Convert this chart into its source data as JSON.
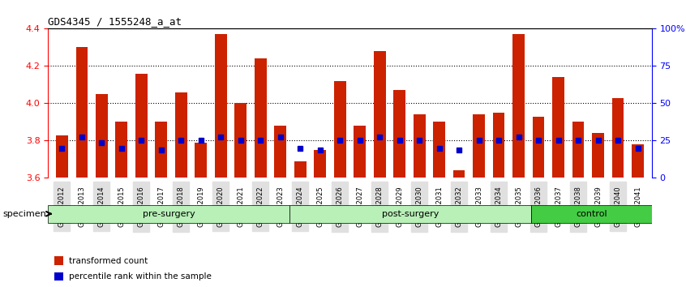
{
  "title": "GDS4345 / 1555248_a_at",
  "samples": [
    "GSM842012",
    "GSM842013",
    "GSM842014",
    "GSM842015",
    "GSM842016",
    "GSM842017",
    "GSM842018",
    "GSM842019",
    "GSM842020",
    "GSM842021",
    "GSM842022",
    "GSM842023",
    "GSM842024",
    "GSM842025",
    "GSM842026",
    "GSM842027",
    "GSM842028",
    "GSM842029",
    "GSM842030",
    "GSM842031",
    "GSM842032",
    "GSM842033",
    "GSM842034",
    "GSM842035",
    "GSM842036",
    "GSM842037",
    "GSM842038",
    "GSM842039",
    "GSM842040",
    "GSM842041"
  ],
  "bar_values": [
    3.83,
    4.3,
    4.05,
    3.9,
    4.16,
    3.9,
    4.06,
    3.79,
    4.37,
    4.0,
    4.24,
    3.88,
    3.69,
    3.75,
    4.12,
    3.88,
    4.28,
    4.07,
    3.94,
    3.9,
    3.64,
    3.94,
    3.95,
    4.37,
    3.93,
    4.14,
    3.9,
    3.84,
    4.03,
    3.78
  ],
  "blue_dot_values": [
    3.76,
    3.82,
    3.79,
    3.76,
    3.8,
    3.75,
    3.8,
    3.8,
    3.82,
    3.8,
    3.8,
    3.82,
    3.76,
    3.75,
    3.8,
    3.8,
    3.82,
    3.8,
    3.8,
    3.76,
    3.75,
    3.8,
    3.8,
    3.82,
    3.8,
    3.8,
    3.8,
    3.8,
    3.8,
    3.76
  ],
  "ylim": [
    3.6,
    4.4
  ],
  "yticks": [
    3.6,
    3.8,
    4.0,
    4.2,
    4.4
  ],
  "right_yticks": [
    0,
    25,
    50,
    75,
    100
  ],
  "right_ytick_labels": [
    "0",
    "25",
    "50",
    "75",
    "100%"
  ],
  "bar_color": "#cc2200",
  "dot_color": "#0000cc",
  "grid_color": "#000000",
  "bg_color": "#ffffff",
  "groups": [
    {
      "label": "pre-surgery",
      "start": 0,
      "end": 12,
      "color": "#aaffaa"
    },
    {
      "label": "post-surgery",
      "start": 12,
      "end": 24,
      "color": "#aaffaa"
    },
    {
      "label": "control",
      "start": 24,
      "end": 30,
      "color": "#55dd55"
    }
  ],
  "group_colors": [
    "#c8f5c8",
    "#c8f5c8",
    "#55cc55"
  ],
  "specimen_label": "specimen",
  "legend_items": [
    {
      "label": "transformed count",
      "color": "#cc2200"
    },
    {
      "label": "percentile rank within the sample",
      "color": "#0000cc"
    }
  ],
  "bar_width": 0.6
}
